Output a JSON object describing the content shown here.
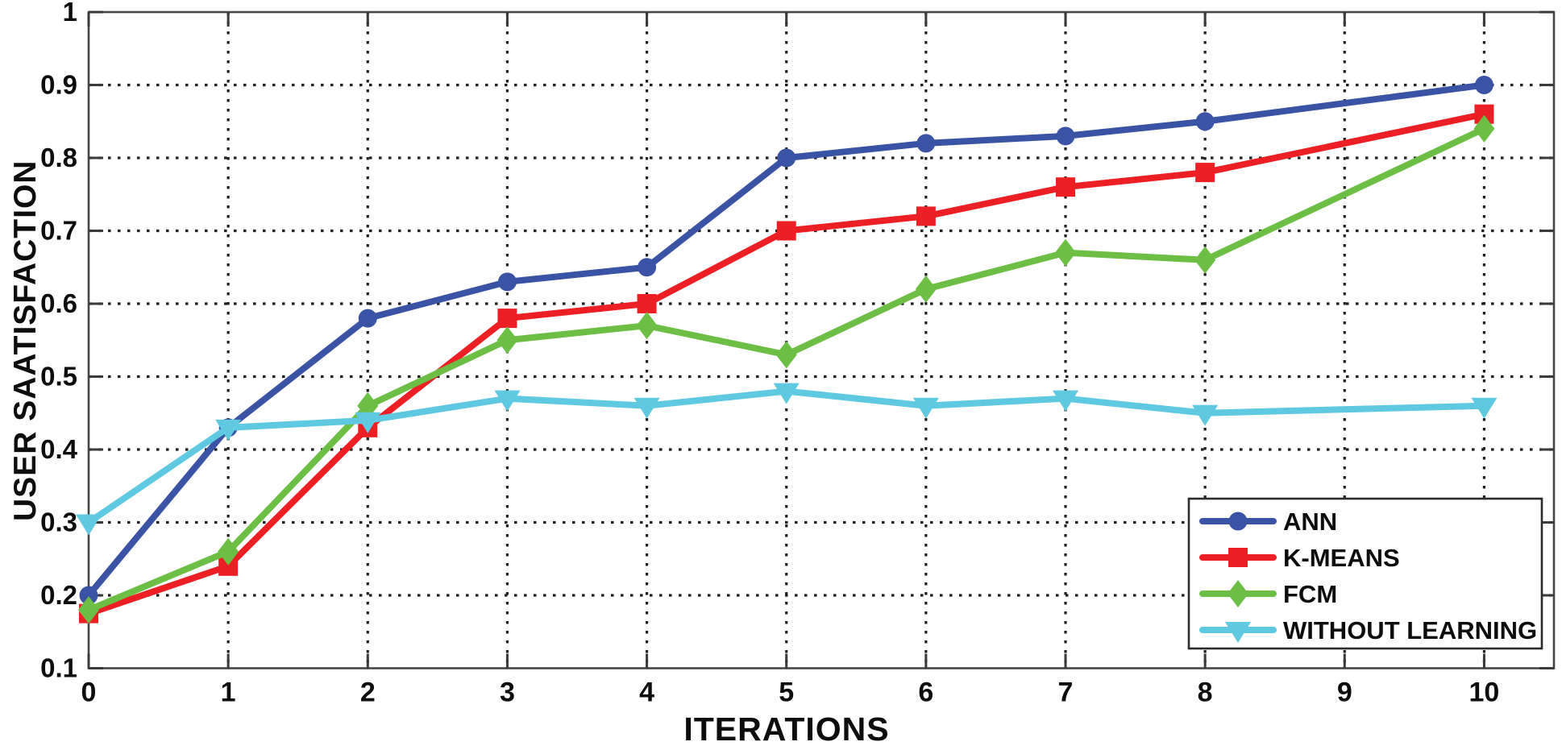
{
  "chart_data": {
    "type": "line",
    "title": "",
    "xlabel": "ITERATIONS",
    "ylabel": "USER SAATISFACTION",
    "xlim": [
      0,
      10.5
    ],
    "ylim": [
      0.1,
      1.0
    ],
    "grid": "dotted",
    "legend_position": "lower-right",
    "x_ticks": [
      {
        "v": 0,
        "label": "0"
      },
      {
        "v": 1,
        "label": "1"
      },
      {
        "v": 2,
        "label": "2"
      },
      {
        "v": 3,
        "label": "3"
      },
      {
        "v": 4,
        "label": "4"
      },
      {
        "v": 5,
        "label": "5"
      },
      {
        "v": 6,
        "label": "6"
      },
      {
        "v": 7,
        "label": "7"
      },
      {
        "v": 8,
        "label": "8"
      },
      {
        "v": 9,
        "label": "9"
      },
      {
        "v": 10,
        "label": "10"
      }
    ],
    "y_ticks": [
      {
        "v": 0.1,
        "label": "0.1"
      },
      {
        "v": 0.2,
        "label": "0.2"
      },
      {
        "v": 0.3,
        "label": "0.3"
      },
      {
        "v": 0.4,
        "label": "0.4"
      },
      {
        "v": 0.5,
        "label": "0.5"
      },
      {
        "v": 0.6,
        "label": "0.6"
      },
      {
        "v": 0.7,
        "label": "0.7"
      },
      {
        "v": 0.8,
        "label": "0.8"
      },
      {
        "v": 0.9,
        "label": "0.9"
      },
      {
        "v": 1.0,
        "label": "1"
      }
    ],
    "series": [
      {
        "name": "ANN",
        "color": "#3A53A4",
        "marker": "circle",
        "x": [
          0,
          1,
          2,
          3,
          4,
          5,
          6,
          7,
          8,
          10
        ],
        "values": [
          0.2,
          0.43,
          0.58,
          0.63,
          0.65,
          0.8,
          0.82,
          0.83,
          0.85,
          0.9
        ]
      },
      {
        "name": "K-MEANS",
        "color": "#EC2024",
        "marker": "square",
        "x": [
          0,
          1,
          2,
          3,
          4,
          5,
          6,
          7,
          8,
          10
        ],
        "values": [
          0.175,
          0.24,
          0.43,
          0.58,
          0.6,
          0.7,
          0.72,
          0.76,
          0.78,
          0.86
        ]
      },
      {
        "name": "FCM",
        "color": "#6CBE45",
        "marker": "diamond",
        "x": [
          0,
          1,
          2,
          3,
          4,
          5,
          6,
          7,
          8,
          10
        ],
        "values": [
          0.18,
          0.26,
          0.46,
          0.55,
          0.57,
          0.53,
          0.62,
          0.67,
          0.66,
          0.84
        ]
      },
      {
        "name": "WITHOUT LEARNING",
        "color": "#5EC9E0",
        "marker": "triangle-down",
        "x": [
          0,
          1,
          2,
          3,
          4,
          5,
          6,
          7,
          8,
          10
        ],
        "values": [
          0.3,
          0.43,
          0.44,
          0.47,
          0.46,
          0.48,
          0.46,
          0.47,
          0.45,
          0.46
        ]
      }
    ],
    "colors": {
      "grid": "#1f1f1f",
      "axis_border": "#464646",
      "tick": "#3a3a3a",
      "text": "#0d0d0d",
      "legend_background": "#ffffff",
      "legend_border": "#2b2b2b"
    }
  }
}
